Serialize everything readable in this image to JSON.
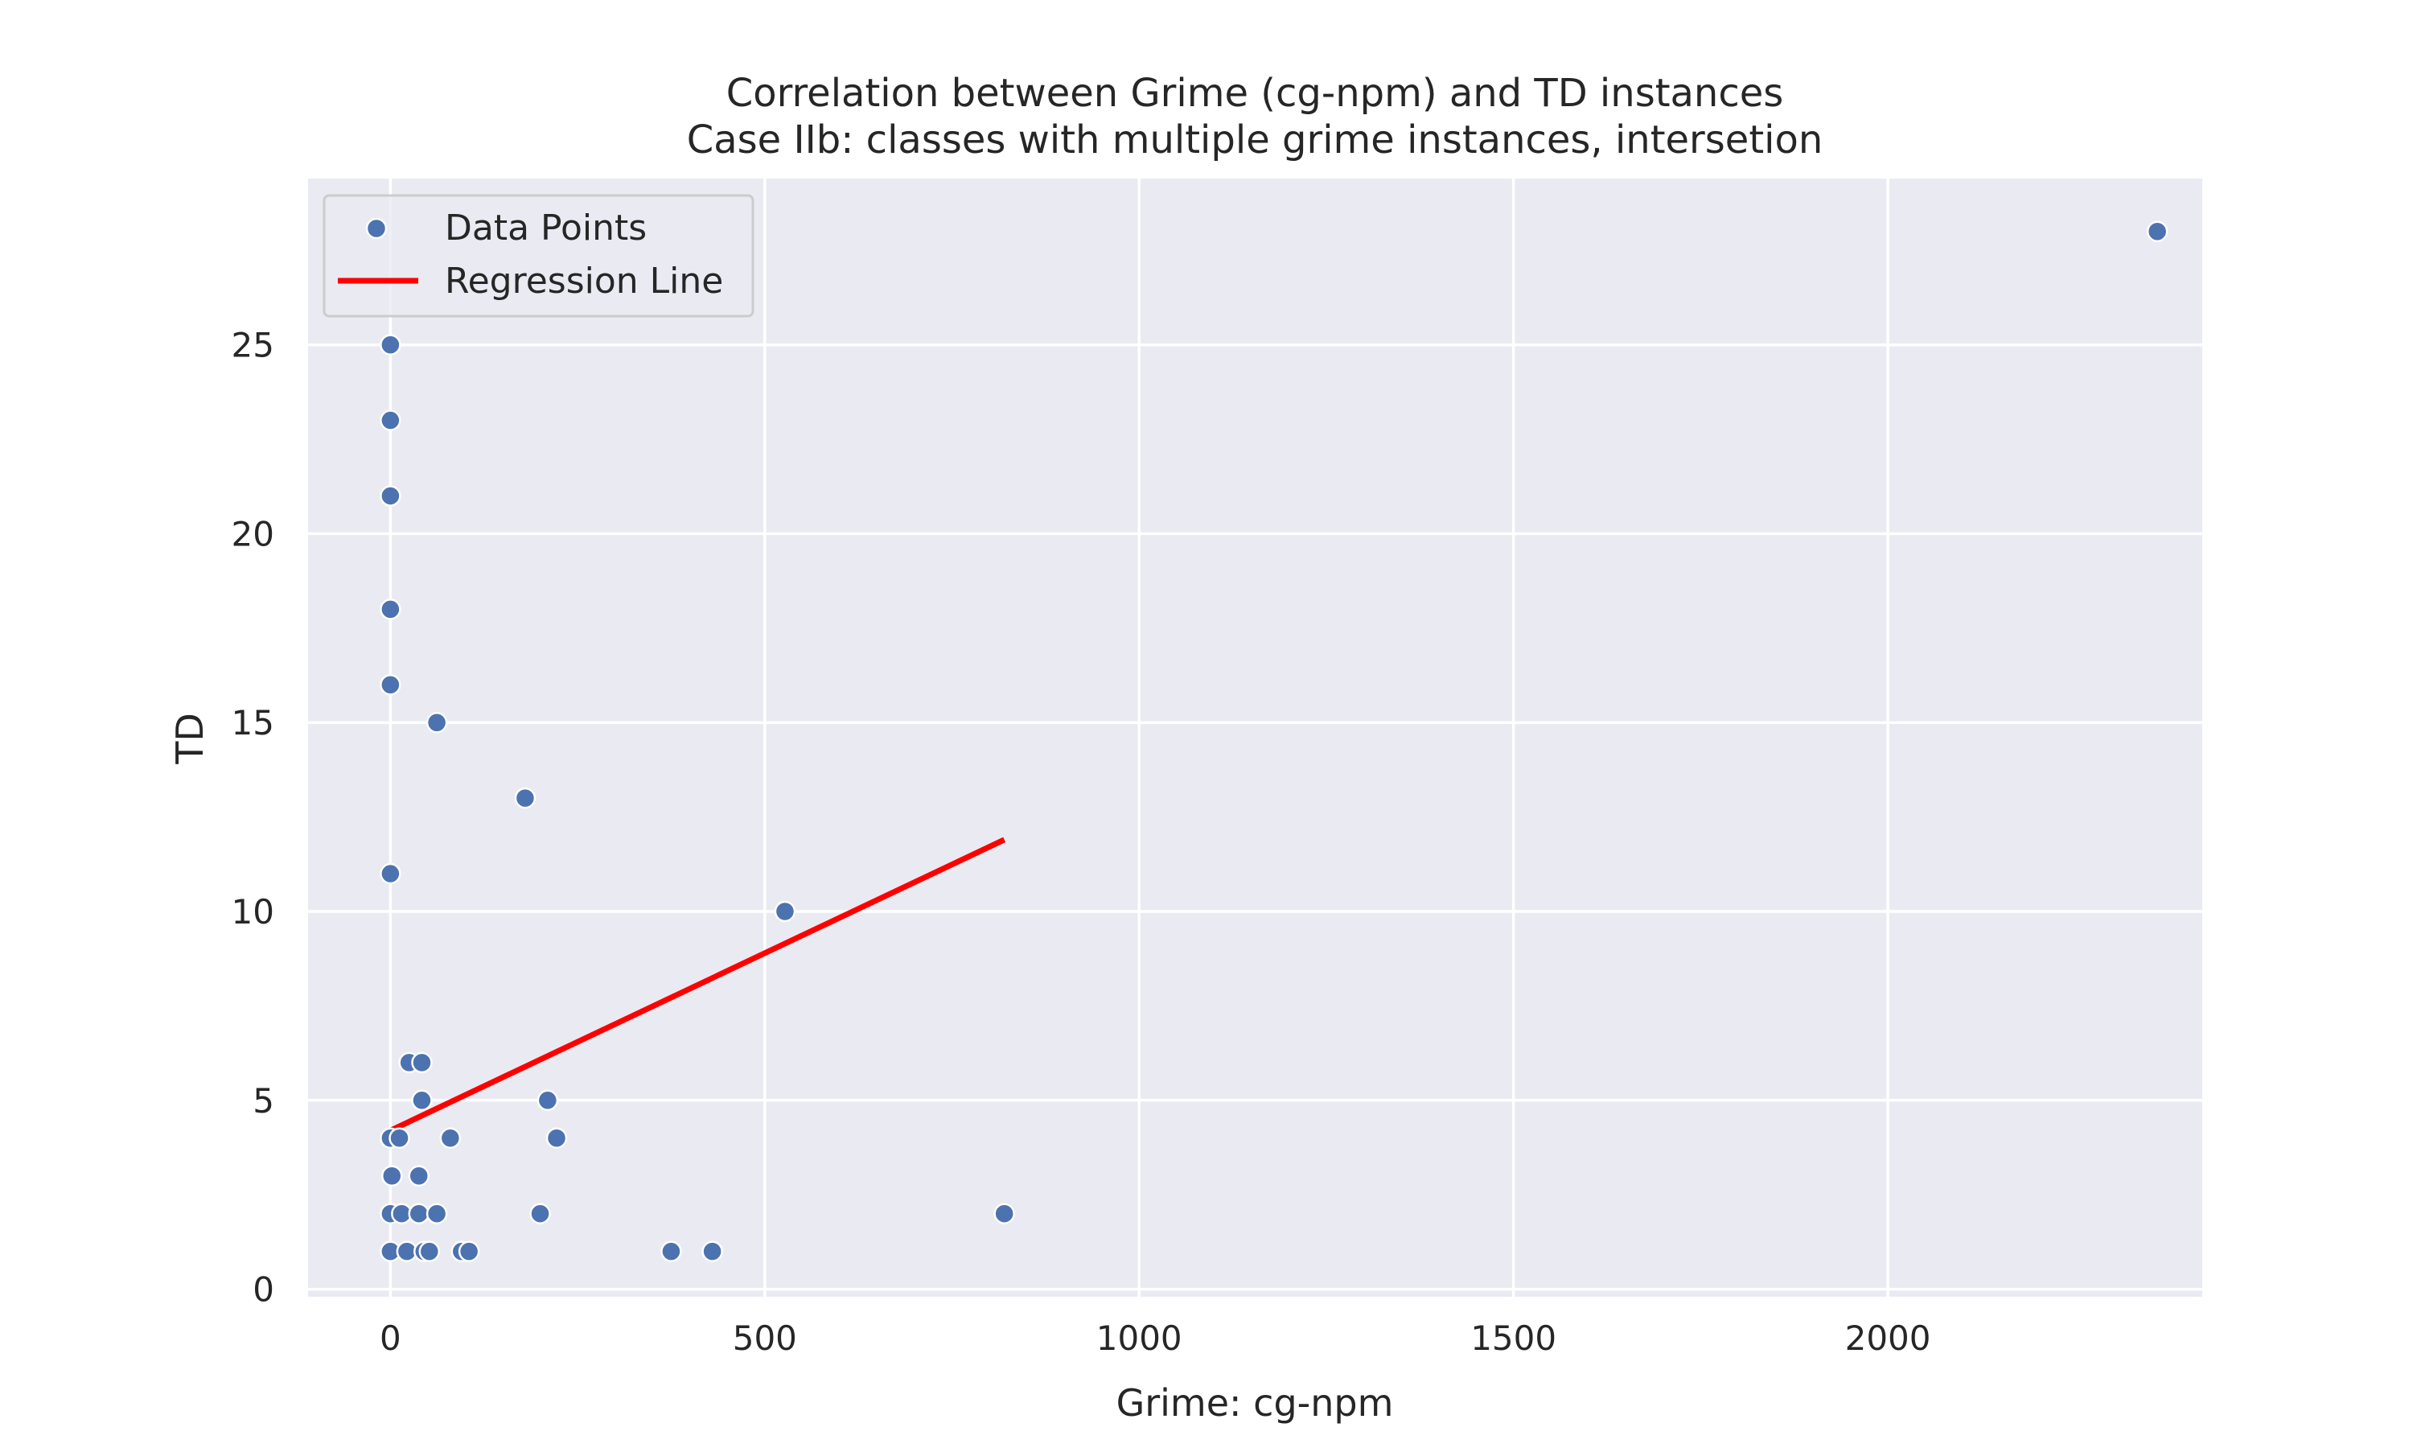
{
  "chart_data": {
    "type": "scatter",
    "title": "Correlation between Grime (cg-npm) and TD instances",
    "subtitle": "Case IIb: classes with multiple grime instances, intersetion",
    "xlabel": "Grime: cg-npm",
    "ylabel": "TD",
    "xlim": [
      -110,
      2420
    ],
    "ylim": [
      -0.2,
      29.4
    ],
    "xticks": [
      0,
      500,
      1000,
      1500,
      2000
    ],
    "xtick_labels": [
      "0",
      "500",
      "1000",
      "1500",
      "2000"
    ],
    "yticks": [
      0,
      5,
      10,
      15,
      20,
      25
    ],
    "ytick_labels": [
      "0",
      "5",
      "10",
      "15",
      "20",
      "25"
    ],
    "grid": true,
    "legend_position": "top-left",
    "series": [
      {
        "name": "Data Points",
        "kind": "scatter",
        "color": "#4c72b0",
        "points": [
          {
            "x": 0,
            "y": 25
          },
          {
            "x": 0,
            "y": 23
          },
          {
            "x": 0,
            "y": 21
          },
          {
            "x": 0,
            "y": 18
          },
          {
            "x": 0,
            "y": 16
          },
          {
            "x": 0,
            "y": 11
          },
          {
            "x": 0,
            "y": 4
          },
          {
            "x": 2,
            "y": 3
          },
          {
            "x": 0,
            "y": 2
          },
          {
            "x": 0,
            "y": 1
          },
          {
            "x": 12,
            "y": 4
          },
          {
            "x": 15,
            "y": 2
          },
          {
            "x": 22,
            "y": 1
          },
          {
            "x": 25,
            "y": 6
          },
          {
            "x": 42,
            "y": 6
          },
          {
            "x": 42,
            "y": 5
          },
          {
            "x": 38,
            "y": 3
          },
          {
            "x": 38,
            "y": 2
          },
          {
            "x": 45,
            "y": 1
          },
          {
            "x": 52,
            "y": 1
          },
          {
            "x": 62,
            "y": 15
          },
          {
            "x": 62,
            "y": 2
          },
          {
            "x": 80,
            "y": 4
          },
          {
            "x": 95,
            "y": 1
          },
          {
            "x": 105,
            "y": 1
          },
          {
            "x": 180,
            "y": 13
          },
          {
            "x": 200,
            "y": 2
          },
          {
            "x": 210,
            "y": 5
          },
          {
            "x": 222,
            "y": 4
          },
          {
            "x": 375,
            "y": 1
          },
          {
            "x": 430,
            "y": 1
          },
          {
            "x": 527,
            "y": 10
          },
          {
            "x": 820,
            "y": 2
          },
          {
            "x": 2360,
            "y": 28
          }
        ]
      },
      {
        "name": "Regression Line",
        "kind": "line",
        "color": "#ff0000",
        "x": [
          0,
          820
        ],
        "y": [
          4.2,
          11.9
        ]
      }
    ]
  },
  "colors": {
    "plot_background": "#eaeaf2",
    "grid": "#ffffff",
    "text": "#262626",
    "point_fill": "#4c72b0",
    "line": "#ff0000"
  }
}
